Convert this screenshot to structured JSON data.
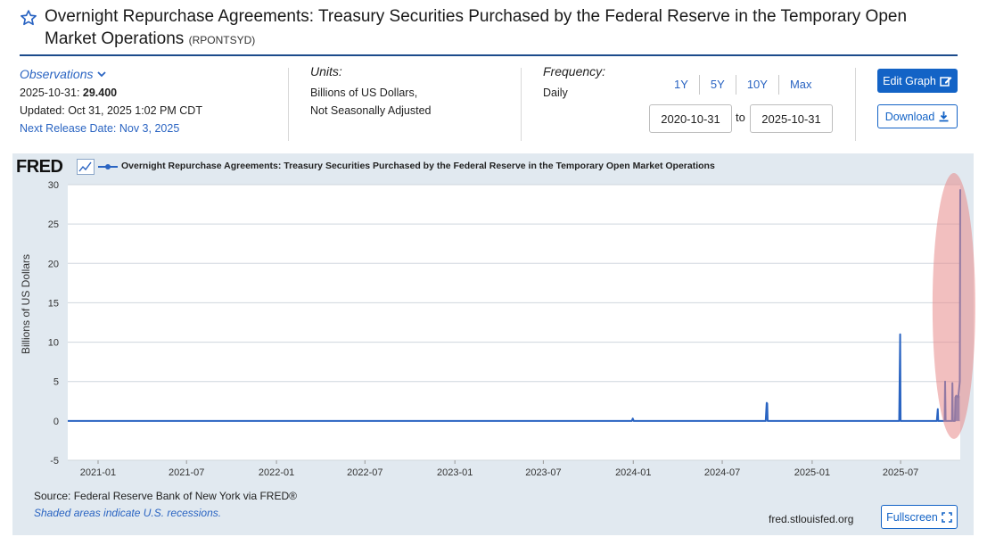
{
  "header": {
    "title": "Overnight Repurchase Agreements: Treasury Securities Purchased by the Federal Reserve in the Temporary Open Market Operations",
    "series_id": "(RPONTSYD)"
  },
  "observations": {
    "label": "Observations",
    "date": "2025-10-31:",
    "value": "29.400",
    "updated": "Updated: Oct 31, 2025 1:02 PM CDT",
    "next_release": "Next Release Date: Nov 3, 2025"
  },
  "units": {
    "label": "Units:",
    "line1": "Billions of US Dollars,",
    "line2": "Not Seasonally Adjusted"
  },
  "frequency": {
    "label": "Frequency:",
    "value": "Daily"
  },
  "range": {
    "buttons": [
      "1Y",
      "5Y",
      "10Y",
      "Max"
    ],
    "start": "2020-10-31",
    "to": "to",
    "end": "2025-10-31"
  },
  "actions": {
    "edit_graph": "Edit Graph",
    "download": "Download",
    "fullscreen": "Fullscreen"
  },
  "graph": {
    "logo": "FRED",
    "legend": "Overnight Repurchase Agreements: Treasury Securities Purchased by the Federal Reserve in the Temporary Open Market Operations",
    "source": "Source: Federal Reserve Bank of New York via FRED®",
    "shaded_note": "Shaded areas indicate U.S. recessions.",
    "site": "fred.stlouisfed.org",
    "highlight_color": "#e88a8a",
    "line_color": "#2a64c2"
  },
  "chart_data": {
    "type": "line",
    "ylabel": "Billions of US Dollars",
    "ylim": [
      -5,
      30
    ],
    "yticks": [
      -5,
      0,
      5,
      10,
      15,
      20,
      25,
      30
    ],
    "xticks": [
      "2021-01",
      "2021-07",
      "2022-01",
      "2022-07",
      "2023-01",
      "2023-07",
      "2024-01",
      "2024-07",
      "2025-01",
      "2025-07"
    ],
    "xrange": [
      "2020-10-31",
      "2025-10-31"
    ],
    "grid": "horizontal",
    "series": [
      {
        "name": "Overnight Repurchase Agreements: Treasury Securities Purchased by the Federal Reserve in the Temporary Open Market Operations",
        "points": [
          [
            "2020-10-31",
            0
          ],
          [
            "2023-12-29",
            0
          ],
          [
            "2023-12-31",
            0.3
          ],
          [
            "2024-01-02",
            0
          ],
          [
            "2024-09-28",
            0
          ],
          [
            "2024-09-30",
            2.3
          ],
          [
            "2024-10-01",
            2.2
          ],
          [
            "2024-10-02",
            0
          ],
          [
            "2025-06-28",
            0
          ],
          [
            "2025-06-30",
            11.0
          ],
          [
            "2025-07-01",
            0
          ],
          [
            "2025-09-13",
            0
          ],
          [
            "2025-09-15",
            1.5
          ],
          [
            "2025-09-16",
            0
          ],
          [
            "2025-09-29",
            0
          ],
          [
            "2025-09-30",
            5.0
          ],
          [
            "2025-10-01",
            0
          ],
          [
            "2025-10-14",
            0
          ],
          [
            "2025-10-15",
            4.8
          ],
          [
            "2025-10-16",
            0
          ],
          [
            "2025-10-20",
            0
          ],
          [
            "2025-10-21",
            3.0
          ],
          [
            "2025-10-23",
            3.2
          ],
          [
            "2025-10-27",
            3.0
          ],
          [
            "2025-10-30",
            5.0
          ],
          [
            "2025-10-31",
            29.4
          ]
        ]
      }
    ]
  }
}
